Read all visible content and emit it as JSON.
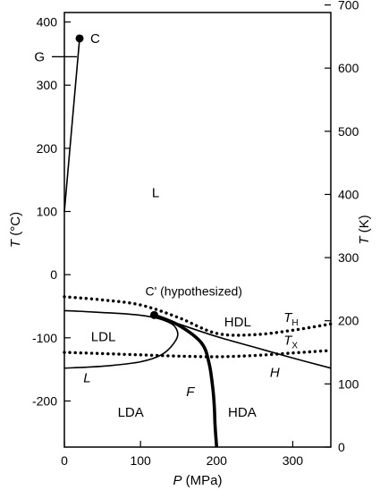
{
  "chart_data": {
    "type": "line",
    "title": "",
    "xlabel_var": "P",
    "xlabel_unit": " (MPa)",
    "ylabel_left_var": "T",
    "ylabel_left_unit": " (°C)",
    "ylabel_right_var": "T",
    "ylabel_right_unit": " (K)",
    "xlim": [
      0,
      350
    ],
    "ylim": [
      -273,
      415
    ],
    "ylim_right_K": [
      0,
      688
    ],
    "grid": false,
    "legend": "none",
    "x_ticks": [
      0,
      100,
      200,
      300
    ],
    "y_ticks_left": [
      400,
      300,
      200,
      100,
      0,
      -100,
      -200
    ],
    "y_ticks_right_K": [
      700,
      600,
      500,
      400,
      300,
      200,
      100,
      0
    ],
    "series": [
      {
        "style": "solid-thin",
        "x": [
          0,
          20
        ],
        "y": [
          100,
          374
        ]
      },
      {
        "style": "dotted",
        "x": [
          0,
          50,
          100,
          150,
          200,
          250,
          300,
          350
        ],
        "y": [
          -35,
          -40,
          -48,
          -68,
          -93,
          -95,
          -88,
          -78
        ]
      },
      {
        "style": "dotted",
        "x": [
          0,
          50,
          100,
          150,
          200,
          250,
          300,
          350
        ],
        "y": [
          -123,
          -125,
          -127,
          -129,
          -130,
          -128,
          -124,
          -120
        ]
      },
      {
        "style": "solid-thin",
        "x": [
          0,
          50,
          100,
          130,
          148,
          145,
          130,
          110,
          80,
          50,
          20,
          0
        ],
        "y": [
          -148,
          -145,
          -138,
          -125,
          -100,
          -82,
          -72,
          -66,
          -62,
          -60,
          -58,
          -57
        ]
      },
      {
        "style": "solid-thin",
        "x": [
          118,
          150,
          200,
          250,
          300,
          350
        ],
        "y": [
          -64,
          -78,
          -98,
          -115,
          -132,
          -148
        ]
      },
      {
        "style": "solid-thick",
        "x": [
          118,
          150,
          180,
          190,
          195,
          197,
          198,
          200
        ],
        "y": [
          -64,
          -80,
          -108,
          -140,
          -180,
          -210,
          -240,
          -273
        ]
      }
    ],
    "points": [
      {
        "label": "C",
        "x": 20,
        "y": 374
      },
      {
        "label": "C' (hypothesized)",
        "x": 118,
        "y": -64
      }
    ],
    "annotations": [
      {
        "text": "G",
        "side": "left-axis",
        "y": 345
      },
      {
        "text": "L",
        "x": 115,
        "y": 130
      },
      {
        "text": "LDL",
        "x": 35,
        "y": -98
      },
      {
        "text": "HDL",
        "x": 210,
        "y": -75
      },
      {
        "text": "LDA",
        "x": 70,
        "y": -218
      },
      {
        "text": "HDA",
        "x": 215,
        "y": -218
      },
      {
        "text": "L",
        "x": 25,
        "y": -163,
        "italic": true
      },
      {
        "text": "F",
        "x": 160,
        "y": -185,
        "italic": true
      },
      {
        "text": "H",
        "x": 270,
        "y": -155,
        "italic": true
      },
      {
        "text": "T",
        "sub": "H",
        "x": 288,
        "y": -68,
        "italic": true
      },
      {
        "text": "T",
        "sub": "X",
        "x": 288,
        "y": -104,
        "italic": true
      }
    ]
  }
}
